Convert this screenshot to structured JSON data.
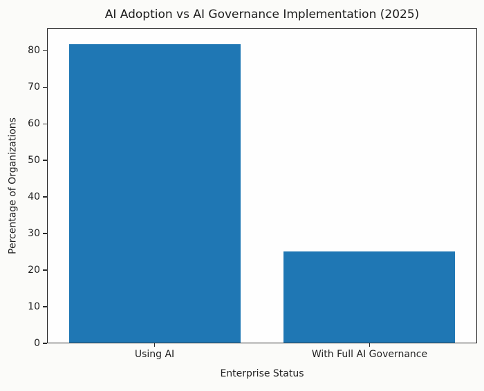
{
  "chart_data": {
    "type": "bar",
    "title": "AI Adoption vs AI Governance Implementation (2025)",
    "categories": [
      "Using AI",
      "With Full AI Governance"
    ],
    "values": [
      82,
      25
    ],
    "xlabel": "Enterprise Status",
    "ylabel": "Percentage of Organizations",
    "ylim": [
      0,
      86.1
    ],
    "yticks": [
      0,
      10,
      20,
      30,
      40,
      50,
      60,
      70,
      80
    ],
    "bar_color": "#1f77b4",
    "bar_width_fraction": 0.8,
    "grid": false,
    "legend": "none"
  }
}
